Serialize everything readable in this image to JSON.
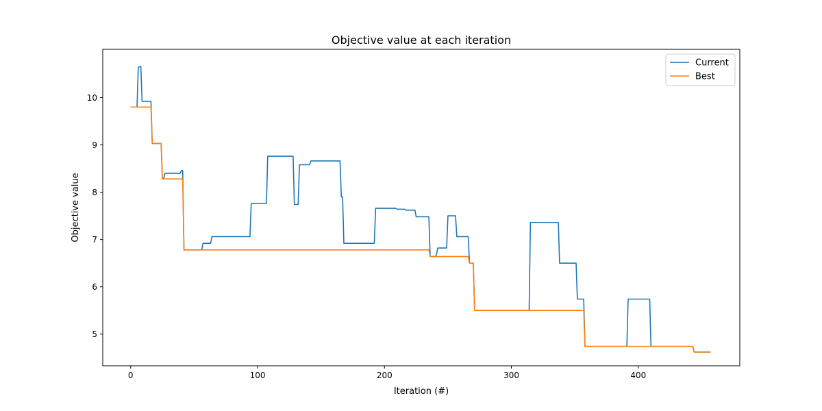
{
  "chart_data": {
    "type": "line",
    "title": "Objective value at each iteration",
    "xlabel": "Iteration (#)",
    "ylabel": "Objective value",
    "xlim": [
      -22,
      480
    ],
    "ylim": [
      4.33,
      11.02
    ],
    "xticks": [
      0,
      100,
      200,
      300,
      400
    ],
    "yticks": [
      5,
      6,
      7,
      8,
      9,
      10
    ],
    "grid": false,
    "legend_position": "top-right",
    "series": [
      {
        "name": "Current",
        "color": "#1f77b4",
        "points": [
          [
            0,
            9.8
          ],
          [
            5,
            9.8
          ],
          [
            6,
            10.64
          ],
          [
            8,
            10.66
          ],
          [
            9,
            9.92
          ],
          [
            16,
            9.92
          ],
          [
            17,
            9.03
          ],
          [
            24,
            9.03
          ],
          [
            25,
            8.28
          ],
          [
            26,
            8.28
          ],
          [
            27,
            8.4
          ],
          [
            39,
            8.4
          ],
          [
            40,
            8.46
          ],
          [
            41,
            8.46
          ],
          [
            42,
            6.78
          ],
          [
            56,
            6.78
          ],
          [
            57,
            6.92
          ],
          [
            63,
            6.92
          ],
          [
            64,
            7.06
          ],
          [
            94,
            7.06
          ],
          [
            95,
            7.76
          ],
          [
            107,
            7.76
          ],
          [
            108,
            8.76
          ],
          [
            128,
            8.76
          ],
          [
            129,
            7.74
          ],
          [
            132,
            7.74
          ],
          [
            133,
            8.58
          ],
          [
            141,
            8.58
          ],
          [
            142,
            8.66
          ],
          [
            165,
            8.66
          ],
          [
            166,
            7.9
          ],
          [
            167,
            7.9
          ],
          [
            168,
            6.92
          ],
          [
            192,
            6.92
          ],
          [
            193,
            7.66
          ],
          [
            209,
            7.66
          ],
          [
            210,
            7.64
          ],
          [
            216,
            7.64
          ],
          [
            217,
            7.62
          ],
          [
            224,
            7.62
          ],
          [
            225,
            7.48
          ],
          [
            235,
            7.48
          ],
          [
            236,
            6.64
          ],
          [
            240,
            6.64
          ],
          [
            241,
            6.68
          ],
          [
            242,
            6.82
          ],
          [
            249,
            6.82
          ],
          [
            250,
            7.5
          ],
          [
            256,
            7.5
          ],
          [
            257,
            7.06
          ],
          [
            266,
            7.06
          ],
          [
            267,
            6.5
          ],
          [
            270,
            6.5
          ],
          [
            271,
            5.5
          ],
          [
            314,
            5.5
          ],
          [
            315,
            7.36
          ],
          [
            337,
            7.36
          ],
          [
            338,
            6.5
          ],
          [
            351,
            6.5
          ],
          [
            352,
            5.74
          ],
          [
            357,
            5.74
          ],
          [
            358,
            4.74
          ],
          [
            391,
            4.74
          ],
          [
            392,
            5.74
          ],
          [
            409,
            5.74
          ],
          [
            410,
            4.74
          ],
          [
            443,
            4.74
          ],
          [
            444,
            4.62
          ],
          [
            457,
            4.62
          ]
        ]
      },
      {
        "name": "Best",
        "color": "#ff7f0e",
        "points": [
          [
            0,
            9.8
          ],
          [
            16,
            9.8
          ],
          [
            17,
            9.03
          ],
          [
            24,
            9.03
          ],
          [
            25,
            8.28
          ],
          [
            41,
            8.28
          ],
          [
            42,
            6.78
          ],
          [
            235,
            6.78
          ],
          [
            236,
            6.64
          ],
          [
            266,
            6.64
          ],
          [
            267,
            6.5
          ],
          [
            270,
            6.5
          ],
          [
            271,
            5.5
          ],
          [
            357,
            5.5
          ],
          [
            358,
            4.74
          ],
          [
            443,
            4.74
          ],
          [
            444,
            4.62
          ],
          [
            457,
            4.62
          ]
        ]
      }
    ]
  }
}
